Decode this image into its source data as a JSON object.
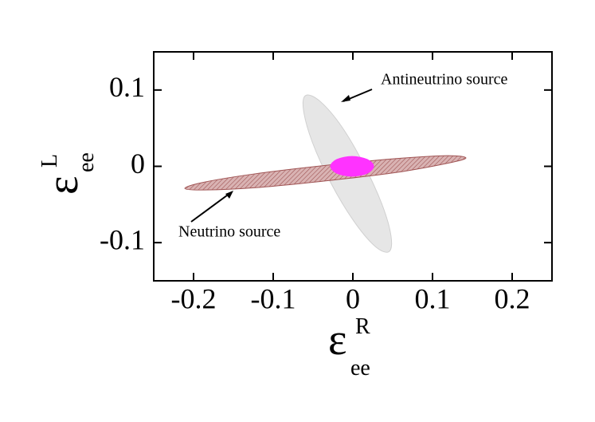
{
  "chart_data": {
    "type": "region",
    "xlabel": {
      "symbol": "ε",
      "sup": "R",
      "sub": "ee"
    },
    "ylabel": {
      "symbol": "ε",
      "sup": "L",
      "sub": "ee"
    },
    "xlim": [
      -0.25,
      0.25
    ],
    "ylim": [
      -0.15,
      0.15
    ],
    "xticks": [
      -0.2,
      -0.1,
      0,
      0.1,
      0.2
    ],
    "yticks": [
      -0.1,
      0,
      0.1
    ],
    "regions": [
      {
        "color": "#e6e6e6",
        "x": [
          0.045,
          0.027,
          0.0,
          -0.028,
          -0.051,
          -0.062,
          -0.059,
          -0.041,
          -0.014,
          0.014,
          0.037,
          0.048
        ],
        "y": [
          -0.112,
          -0.104,
          -0.07,
          -0.021,
          0.032,
          0.074,
          0.093,
          0.085,
          0.052,
          0.002,
          -0.051,
          -0.092
        ]
      },
      {
        "color": "#b87878",
        "x": [
          0.142,
          0.119,
          0.055,
          -0.033,
          -0.122,
          -0.187,
          -0.211,
          -0.188,
          -0.124,
          -0.036,
          0.053,
          0.118
        ],
        "y": [
          0.011,
          0.004,
          -0.008,
          -0.019,
          -0.028,
          -0.031,
          -0.029,
          -0.021,
          -0.01,
          0.001,
          0.01,
          0.014
        ]
      },
      {
        "color": "#ff33ff",
        "x": [
          0.026,
          0.018,
          -0.001,
          -0.02,
          -0.028,
          -0.02,
          -0.001,
          0.018
        ],
        "y": [
          0.0,
          0.009,
          0.013,
          0.009,
          0.0,
          -0.009,
          -0.013,
          -0.009
        ]
      }
    ],
    "annotations": [
      "Antineutrino source",
      "Neutrino source"
    ]
  }
}
